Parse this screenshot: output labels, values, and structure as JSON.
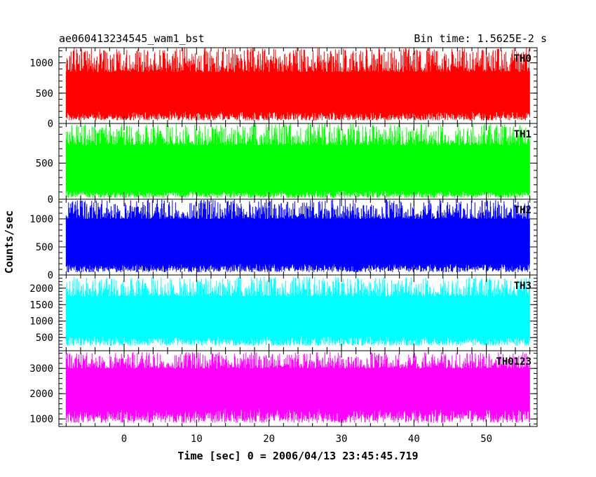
{
  "chart_data": {
    "type": "line",
    "title": "ae060413234545_wam1_bst",
    "subtitle": "Bin time: 1.5625E-2 s",
    "xlabel": "Time [sec] 0 = 2006/04/13 23:45:45.719",
    "ylabel": "Counts/sec",
    "xlim": [
      -9,
      57
    ],
    "x_data_range": [
      -8,
      56
    ],
    "xticks": [
      0,
      10,
      20,
      30,
      40,
      50
    ],
    "grid": false,
    "legend": "none",
    "panels": [
      {
        "name": "TH0",
        "color": "#ff0000",
        "ylim": [
          0,
          1250
        ],
        "yticks": [
          0,
          500,
          1000
        ],
        "typical_low": 200,
        "typical_high": 850,
        "max_low": 50,
        "peak": 1250
      },
      {
        "name": "TH1",
        "color": "#00ff00",
        "ylim": [
          0,
          1050
        ],
        "yticks": [
          0,
          500
        ],
        "typical_low": 120,
        "typical_high": 750,
        "max_low": 20,
        "peak": 1050
      },
      {
        "name": "TH2",
        "color": "#0000ff",
        "ylim": [
          0,
          1350
        ],
        "yticks": [
          0,
          500,
          1000
        ],
        "typical_low": 200,
        "typical_high": 1000,
        "max_low": 50,
        "peak": 1350
      },
      {
        "name": "TH3",
        "color": "#00ffff",
        "ylim": [
          100,
          2400
        ],
        "yticks": [
          500,
          1000,
          1500,
          2000
        ],
        "typical_low": 550,
        "typical_high": 1750,
        "max_low": 250,
        "peak": 2350
      },
      {
        "name": "TH0123",
        "color": "#ff00ff",
        "ylim": [
          700,
          3700
        ],
        "yticks": [
          1000,
          2000,
          3000
        ],
        "typical_low": 1400,
        "typical_high": 3000,
        "max_low": 850,
        "peak": 3650
      }
    ]
  }
}
